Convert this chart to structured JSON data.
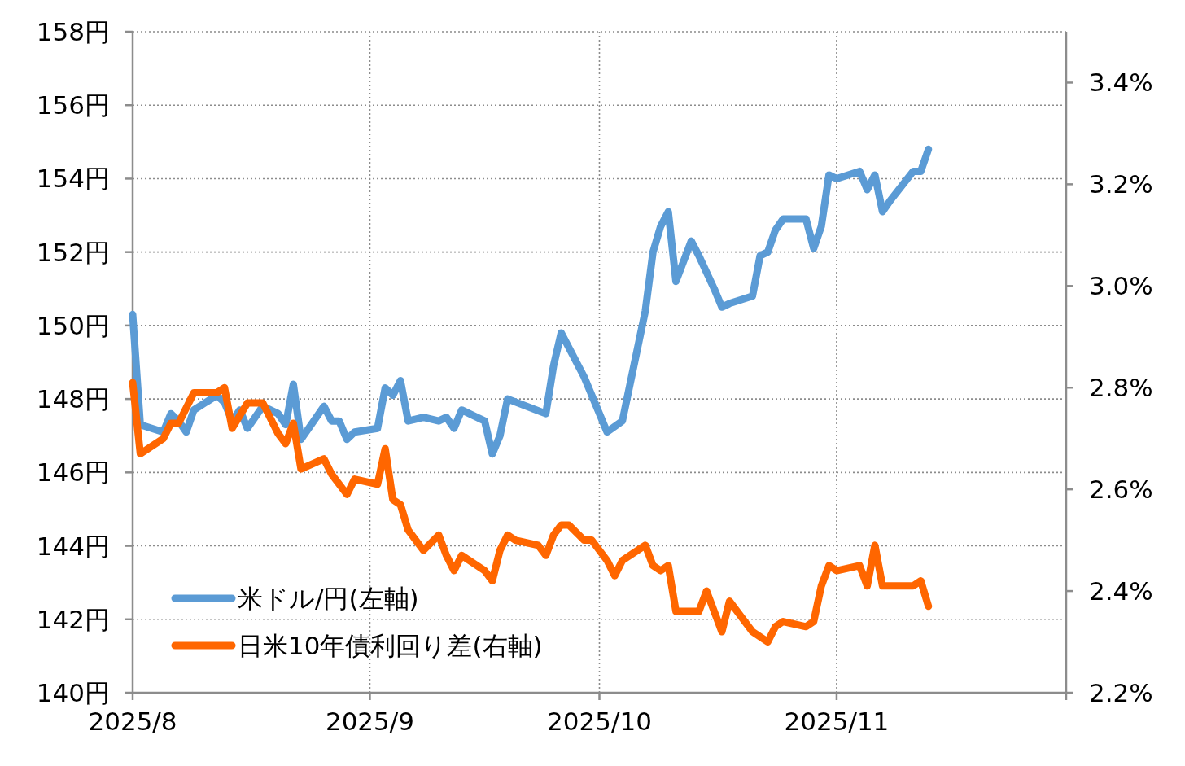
{
  "chart_data": {
    "type": "line",
    "line_style": "solid",
    "marker": "none",
    "grid": true,
    "legend": "bottom left",
    "xlim": [
      "2025-08-01",
      "2025-12-01"
    ],
    "xticks": [
      {
        "value": "2025-08-01",
        "label": "2025/8"
      },
      {
        "value": "2025-09-01",
        "label": "2025/9"
      },
      {
        "value": "2025-10-01",
        "label": "2025/10"
      },
      {
        "value": "2025-11-01",
        "label": "2025/11"
      },
      {
        "value": "2025-12-01",
        "label": null
      }
    ],
    "ylim": [
      140,
      158
    ],
    "yticks": [
      {
        "value": 140,
        "label": "140円"
      },
      {
        "value": 142,
        "label": "142円"
      },
      {
        "value": 144,
        "label": "144円"
      },
      {
        "value": 146,
        "label": "146円"
      },
      {
        "value": 148,
        "label": "148円"
      },
      {
        "value": 150,
        "label": "150円"
      },
      {
        "value": 152,
        "label": "152円"
      },
      {
        "value": 154,
        "label": "154円"
      },
      {
        "value": 156,
        "label": "156円"
      },
      {
        "value": 158,
        "label": "158円"
      }
    ],
    "y2lim": [
      2.2,
      3.5
    ],
    "y2ticks": [
      {
        "value": 2.2,
        "label": "2.2%"
      },
      {
        "value": 2.4,
        "label": "2.4%"
      },
      {
        "value": 2.6,
        "label": "2.6%"
      },
      {
        "value": 2.8,
        "label": "2.8%"
      },
      {
        "value": 3.0,
        "label": "3.0%"
      },
      {
        "value": 3.2,
        "label": "3.2%"
      },
      {
        "value": 3.4,
        "label": "3.4%"
      }
    ],
    "series": [
      {
        "name": "米ドル/円(左軸)",
        "color": "#5b9bd5",
        "axis": "y",
        "x": [
          "2025-08-01",
          "2025-08-02",
          "2025-08-05",
          "2025-08-06",
          "2025-08-07",
          "2025-08-08",
          "2025-08-09",
          "2025-08-12",
          "2025-08-13",
          "2025-08-14",
          "2025-08-15",
          "2025-08-16",
          "2025-08-18",
          "2025-08-20",
          "2025-08-21",
          "2025-08-22",
          "2025-08-23",
          "2025-08-26",
          "2025-08-27",
          "2025-08-28",
          "2025-08-29",
          "2025-08-30",
          "2025-09-02",
          "2025-09-03",
          "2025-09-04",
          "2025-09-05",
          "2025-09-06",
          "2025-09-08",
          "2025-09-10",
          "2025-09-11",
          "2025-09-12",
          "2025-09-13",
          "2025-09-16",
          "2025-09-17",
          "2025-09-18",
          "2025-09-19",
          "2025-09-24",
          "2025-09-25",
          "2025-09-26",
          "2025-09-29",
          "2025-10-02",
          "2025-10-04",
          "2025-10-07",
          "2025-10-08",
          "2025-10-09",
          "2025-10-10",
          "2025-10-11",
          "2025-10-13",
          "2025-10-14",
          "2025-10-16",
          "2025-10-17",
          "2025-10-18",
          "2025-10-21",
          "2025-10-22",
          "2025-10-23",
          "2025-10-24",
          "2025-10-25",
          "2025-10-28",
          "2025-10-29",
          "2025-10-30",
          "2025-10-31",
          "2025-11-01",
          "2025-11-04",
          "2025-11-05",
          "2025-11-06",
          "2025-11-07",
          "2025-11-08",
          "2025-11-11",
          "2025-11-12",
          "2025-11-13"
        ],
        "values": [
          150.3,
          147.3,
          147.1,
          147.6,
          147.4,
          147.1,
          147.7,
          148.1,
          147.9,
          147.4,
          147.7,
          147.2,
          147.8,
          147.6,
          147.3,
          148.4,
          146.9,
          147.8,
          147.4,
          147.4,
          146.9,
          147.1,
          147.2,
          148.3,
          148.1,
          148.5,
          147.4,
          147.5,
          147.4,
          147.5,
          147.2,
          147.7,
          147.4,
          146.5,
          147.0,
          148.0,
          147.6,
          148.9,
          149.8,
          148.6,
          147.1,
          147.4,
          150.4,
          152.0,
          152.7,
          153.1,
          151.2,
          152.3,
          151.9,
          151.0,
          150.5,
          150.6,
          150.8,
          151.9,
          152.0,
          152.6,
          152.9,
          152.9,
          152.1,
          152.7,
          154.1,
          154.0,
          154.2,
          153.7,
          154.1,
          153.1,
          153.4,
          154.2,
          154.2,
          154.8
        ]
      },
      {
        "name": "日米10年債利回り差(右軸)",
        "color": "#ff6600",
        "axis": "y2",
        "x": [
          "2025-08-01",
          "2025-08-02",
          "2025-08-05",
          "2025-08-06",
          "2025-08-07",
          "2025-08-09",
          "2025-08-12",
          "2025-08-13",
          "2025-08-14",
          "2025-08-16",
          "2025-08-18",
          "2025-08-20",
          "2025-08-21",
          "2025-08-22",
          "2025-08-23",
          "2025-08-26",
          "2025-08-27",
          "2025-08-29",
          "2025-08-30",
          "2025-09-02",
          "2025-09-03",
          "2025-09-04",
          "2025-09-05",
          "2025-09-06",
          "2025-09-08",
          "2025-09-10",
          "2025-09-11",
          "2025-09-12",
          "2025-09-13",
          "2025-09-16",
          "2025-09-17",
          "2025-09-18",
          "2025-09-19",
          "2025-09-20",
          "2025-09-23",
          "2025-09-24",
          "2025-09-25",
          "2025-09-26",
          "2025-09-27",
          "2025-09-29",
          "2025-09-30",
          "2025-10-02",
          "2025-10-03",
          "2025-10-04",
          "2025-10-07",
          "2025-10-08",
          "2025-10-09",
          "2025-10-10",
          "2025-10-11",
          "2025-10-14",
          "2025-10-15",
          "2025-10-17",
          "2025-10-18",
          "2025-10-21",
          "2025-10-22",
          "2025-10-23",
          "2025-10-24",
          "2025-10-25",
          "2025-10-28",
          "2025-10-29",
          "2025-10-30",
          "2025-10-31",
          "2025-11-01",
          "2025-11-04",
          "2025-11-05",
          "2025-11-06",
          "2025-11-07",
          "2025-11-08",
          "2025-11-11",
          "2025-11-12",
          "2025-11-13"
        ],
        "values": [
          2.81,
          2.67,
          2.7,
          2.73,
          2.73,
          2.79,
          2.79,
          2.8,
          2.72,
          2.77,
          2.77,
          2.71,
          2.69,
          2.73,
          2.64,
          2.66,
          2.63,
          2.59,
          2.62,
          2.61,
          2.68,
          2.58,
          2.57,
          2.52,
          2.48,
          2.51,
          2.47,
          2.44,
          2.47,
          2.44,
          2.42,
          2.48,
          2.51,
          2.5,
          2.49,
          2.47,
          2.51,
          2.53,
          2.53,
          2.5,
          2.5,
          2.46,
          2.43,
          2.46,
          2.49,
          2.45,
          2.44,
          2.45,
          2.36,
          2.36,
          2.4,
          2.32,
          2.38,
          2.32,
          2.31,
          2.3,
          2.33,
          2.34,
          2.33,
          2.34,
          2.41,
          2.45,
          2.44,
          2.45,
          2.41,
          2.49,
          2.41,
          2.41,
          2.41,
          2.42,
          2.37
        ]
      }
    ]
  }
}
